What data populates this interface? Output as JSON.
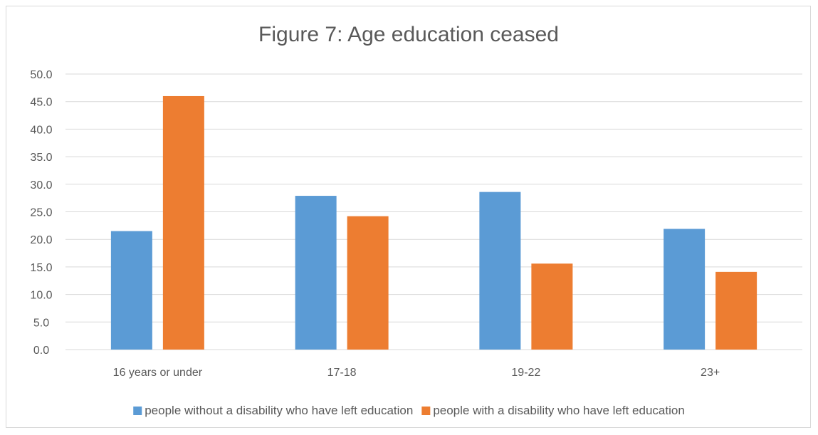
{
  "chart_data": {
    "type": "bar",
    "title": "Figure 7: Age education ceased",
    "xlabel": "",
    "ylabel": "",
    "categories": [
      "16 years or under",
      "17-18",
      "19-22",
      "23+"
    ],
    "series": [
      {
        "name": "people without a disability who have left education",
        "color": "#5b9bd5",
        "values": [
          21.5,
          27.9,
          28.6,
          21.9
        ]
      },
      {
        "name": "people with a disability who have left education",
        "color": "#ed7d31",
        "values": [
          46.0,
          24.2,
          15.6,
          14.1
        ]
      }
    ],
    "ylim": [
      0,
      50
    ],
    "yticks": [
      "0.0",
      "5.0",
      "10.0",
      "15.0",
      "20.0",
      "25.0",
      "30.0",
      "35.0",
      "40.0",
      "45.0",
      "50.0"
    ],
    "grid": true,
    "legend_position": "bottom"
  }
}
